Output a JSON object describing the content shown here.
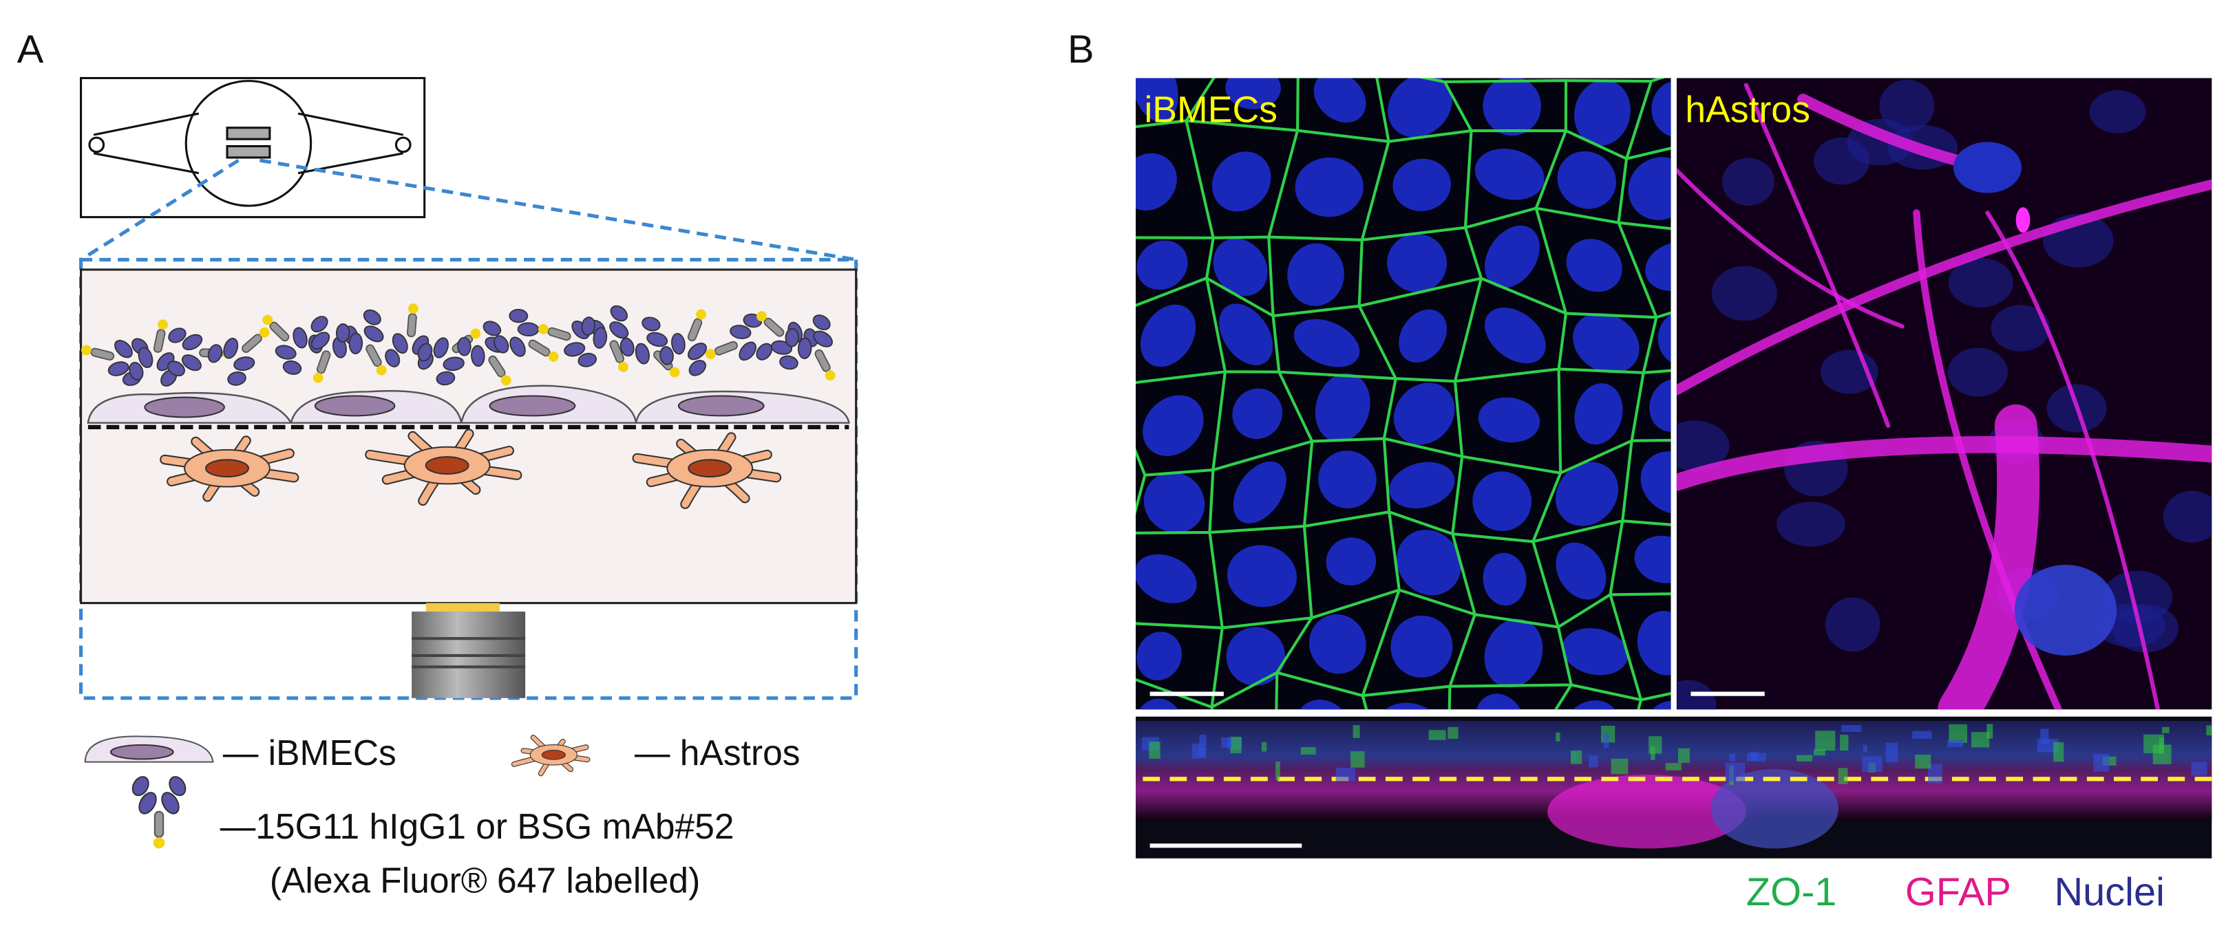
{
  "panel_a": {
    "label": "A",
    "legend": {
      "ibmecs": "— iBMECs",
      "hastros": "— hAstros",
      "antibody_line1": "—15G11 hIgG1 or BSG mAb#52",
      "antibody_line2": "(Alexa Fluor® 647 labelled)"
    }
  },
  "panel_b": {
    "label": "B",
    "images": {
      "left": "iBMECs",
      "right": "hAstros"
    },
    "channels": {
      "zo1": "ZO-1",
      "gfap": "GFAP",
      "nuclei": "Nuclei"
    }
  }
}
